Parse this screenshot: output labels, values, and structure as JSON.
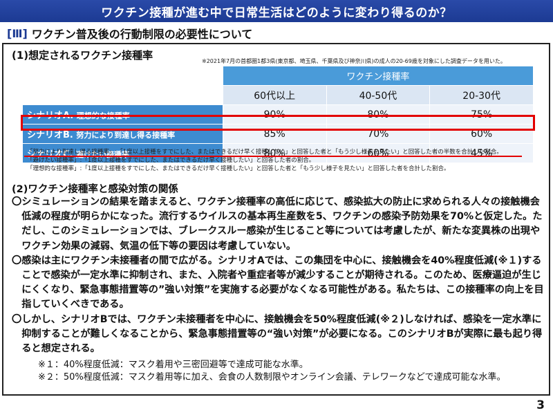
{
  "banner": {
    "title": "ワクチン接種が進む中で日常生活はどのように変わり得るのか？"
  },
  "section": {
    "number": "[Ⅲ]",
    "title": "ワクチン普及後の行動制限の必要性について"
  },
  "part1": {
    "heading": "(1)想定されるワクチン接種率",
    "survey_note": "※2021年7月の首都圏1都3県(東京都、埼玉県、千葉県及び神奈川県)の成人の20-69歳を対象にした調査データを用いた。",
    "table": {
      "group_header": "ワクチン接種率",
      "age_headers": [
        "60代以上",
        "40-50代",
        "20-30代"
      ],
      "rows": [
        {
          "label_main": "シナリオA.",
          "label_sub": "理想的な接種率",
          "values": [
            "90%",
            "80%",
            "75%"
          ]
        },
        {
          "label_main": "シナリオB.",
          "label_sub": "努力により到達し得る接種率",
          "values": [
            "85%",
            "70%",
            "60%"
          ]
        },
        {
          "label_main": "シナリオC.",
          "label_sub": "避けたい接種率",
          "values": [
            "80%",
            "60%",
            "45%"
          ]
        }
      ]
    },
    "notes": [
      "「努力により到達し得る接種率」:「1度以上接種をすでにした、またはできるだけ早く接種したい」と回答した者と「もう少し様子を見たい」と回答した者の半数を合計した割合。",
      "「避けたい接種率」:「1度以上接種をすでにした、またはできるだけ早く接種したい」と回答した者の割合。",
      "「理想的な接種率」:「1度以上接種をすでにした、またはできるだけ早く接種したい」と回答した者と「もう少し様子を見たい」と回答した者を合計した割合。"
    ]
  },
  "part2": {
    "heading": "(2)ワクチン接種率と感染対策の関係",
    "bullets": [
      "〇シミュレーションの結果を踏まえると、ワクチン接種率の高低に応じて、感染拡大の防止に求められる人々の接触機会低減の程度が明らかになった。流行するウイルスの基本再生産数を5、ワクチンの感染予防効果を70%と仮定した。ただし、このシミュレーションでは、ブレークスルー感染が生じること等については考慮したが、新たな変異株の出現やワクチン効果の減弱、気温の低下等の要因は考慮していない。",
      "〇感染は主にワクチン未接種者の間で広がる。シナリオAでは、この集団を中心に、接触機会を40%程度低減(※１)することで感染が一定水準に抑制され、また、入院者や重症者等が減少することが期待される。このため、医療逼迫が生じにくくなり、緊急事態措置等の”強い対策”を実施する必要がなくなる可能性がある。私たちは、この接種率の向上を目指していくべきである。",
      "〇しかし、シナリオBでは、ワクチン未接種者を中心に、接触機会を50%程度低減(※２)しなければ、感染を一定水準に抑制することが難しくなることから、緊急事態措置等の“強い対策”が必要になる。このシナリオBが実際に最も起り得ると想定される。"
    ],
    "footnotes": [
      "※１：40%程度低減：マスク着用や三密回避等で達成可能な水準。",
      "※２：50%程度低減：マスク着用等に加え、会食の人数制限やオンライン会議、テレワークなどで達成可能な水準。"
    ]
  },
  "page_number": "3",
  "colors": {
    "banner": "#1c3a93",
    "header_blue": "#4a9bd9",
    "row_blue": "#3d8bd0",
    "highlight": "#e30000"
  }
}
